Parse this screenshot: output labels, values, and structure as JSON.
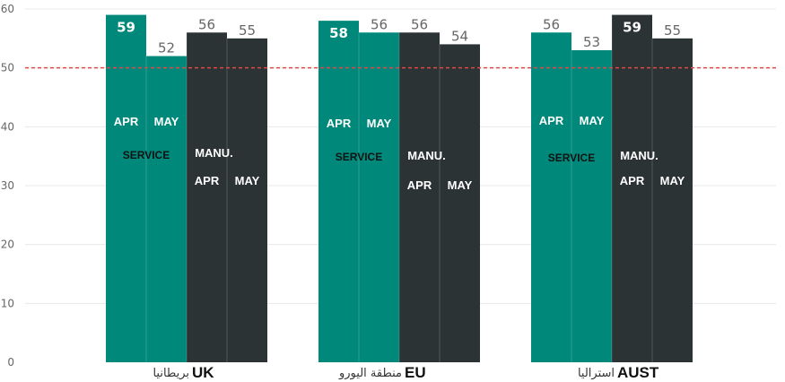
{
  "chart_data": {
    "type": "bar",
    "ylim": [
      0,
      60
    ],
    "y_ticks": [
      0,
      10,
      20,
      30,
      40,
      50,
      60
    ],
    "reference_line": 50,
    "grid": true,
    "categories": [
      {
        "en": "UK",
        "ar": "بريطانيا"
      },
      {
        "en": "EU",
        "ar": "منطقة اليورو"
      },
      {
        "en": "AUST",
        "ar": "استراليا"
      }
    ],
    "series": [
      {
        "sector": "SERVICE",
        "month": "APR",
        "values": [
          59,
          58,
          56
        ]
      },
      {
        "sector": "SERVICE",
        "month": "MAY",
        "values": [
          52,
          56,
          53
        ]
      },
      {
        "sector": "MANU.",
        "month": "APR",
        "values": [
          56,
          56,
          59
        ]
      },
      {
        "sector": "MANU.",
        "month": "MAY",
        "values": [
          55,
          54,
          55
        ]
      }
    ],
    "colors": {
      "service": "#00897b",
      "manufacturing": "#2b3335",
      "reference_line": "#e04848",
      "grid": "#e8e8e8"
    }
  }
}
